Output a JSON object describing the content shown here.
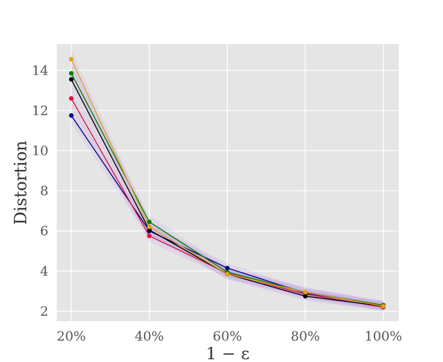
{
  "chart_data": {
    "type": "line",
    "title": "",
    "xlabel": "1 − ε",
    "ylabel": "Distortion",
    "categories": [
      "20%",
      "40%",
      "60%",
      "80%",
      "100%"
    ],
    "yticks": [
      "2",
      "4",
      "6",
      "8",
      "10",
      "12",
      "14"
    ],
    "ylim": [
      1.5,
      15.3
    ],
    "grid": true,
    "background": "#e5e5e5",
    "grid_color": "#ffffff",
    "band_color": "#b07be0",
    "series": [
      {
        "color": "#00008b",
        "values": [
          11.75,
          6.0,
          4.15,
          2.9,
          2.3
        ]
      },
      {
        "color": "#dc143c",
        "values": [
          12.6,
          5.75,
          3.9,
          2.85,
          2.2
        ]
      },
      {
        "color": "#008000",
        "values": [
          13.85,
          6.45,
          3.95,
          2.95,
          2.3
        ]
      },
      {
        "color": "#000000",
        "values": [
          13.55,
          6.05,
          3.85,
          2.75,
          2.25
        ]
      },
      {
        "color": "#daa520",
        "values": [
          14.55,
          6.2,
          3.85,
          2.95,
          2.25
        ]
      }
    ]
  }
}
